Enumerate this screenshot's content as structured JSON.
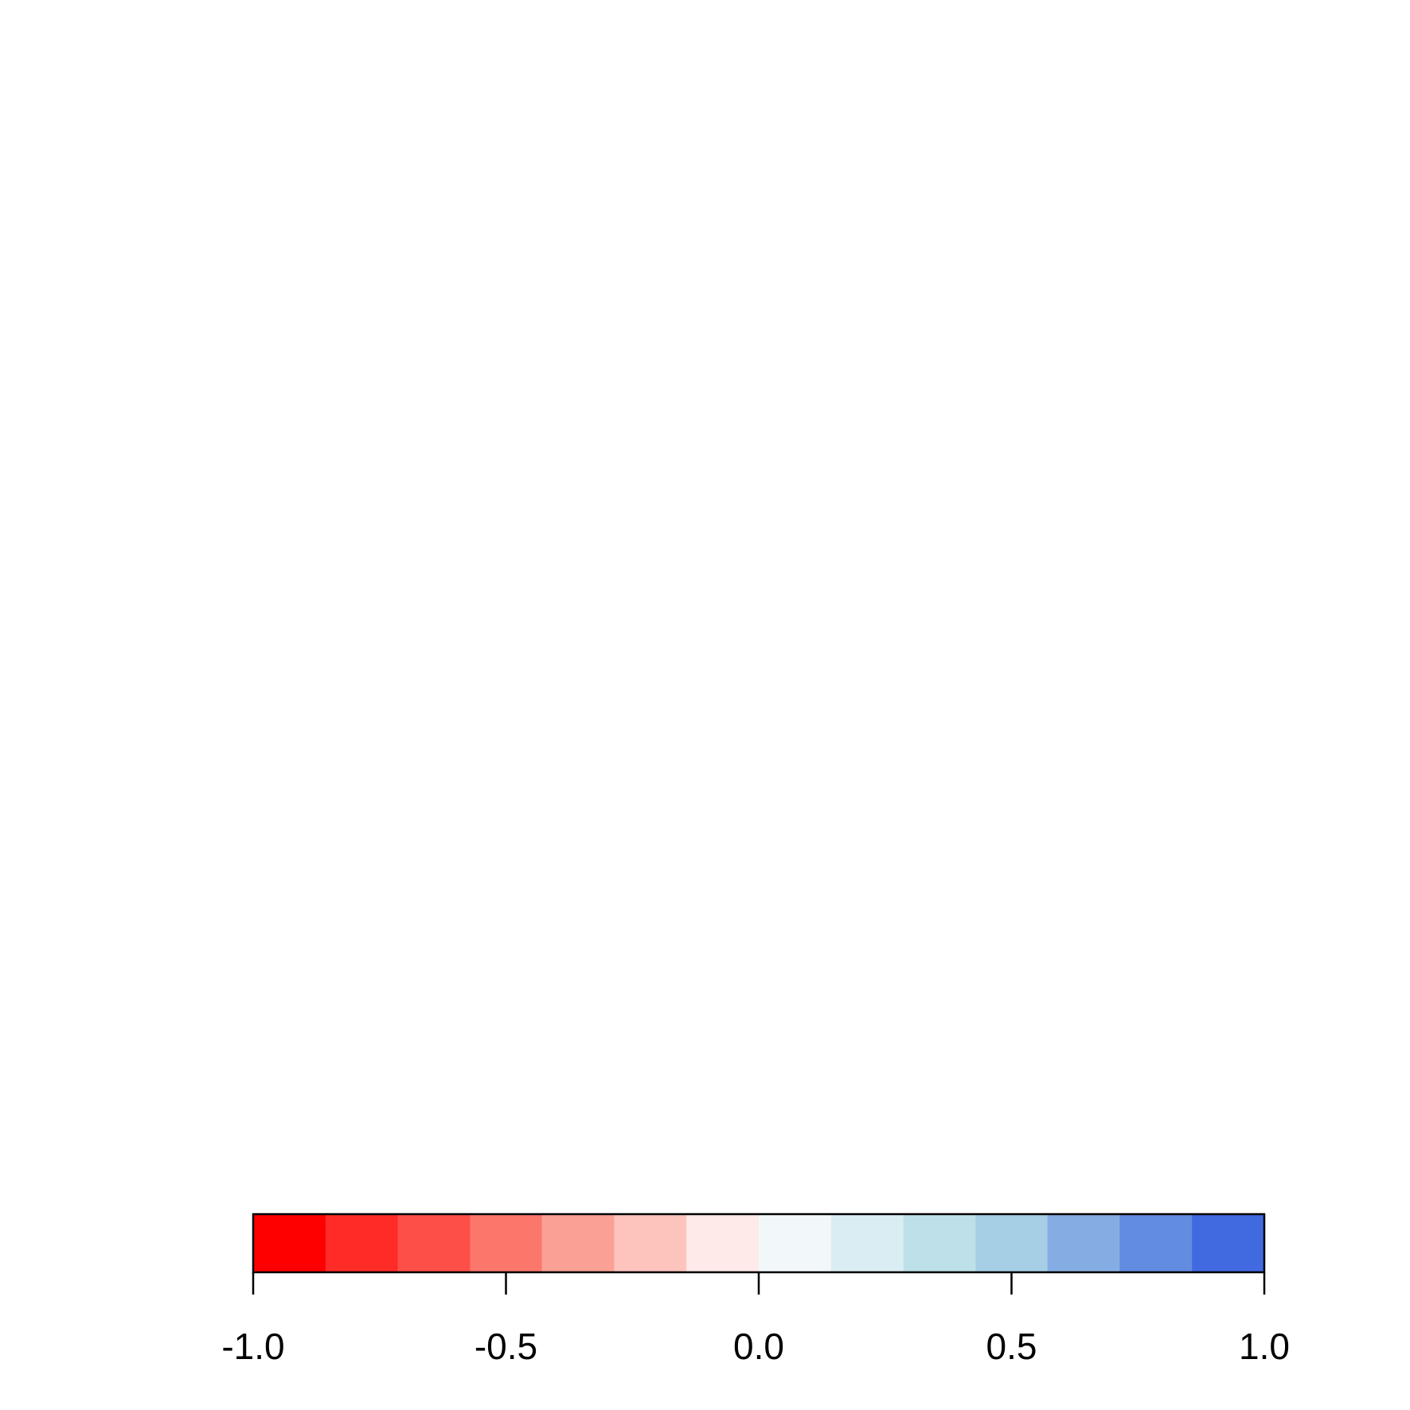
{
  "chart_data": {
    "type": "heatmap",
    "title": "",
    "xlabel": "",
    "ylabel": "",
    "orientation": "horizontal",
    "legend_position": "bottom",
    "range": [
      -1.0,
      1.0
    ],
    "bins": [
      {
        "from": -1.0,
        "to": -0.857,
        "color": "#FF0000"
      },
      {
        "from": -0.857,
        "to": -0.714,
        "color": "#FE2B27"
      },
      {
        "from": -0.714,
        "to": -0.571,
        "color": "#FD4F47"
      },
      {
        "from": -0.571,
        "to": -0.429,
        "color": "#FB776B"
      },
      {
        "from": -0.429,
        "to": -0.286,
        "color": "#FBA095"
      },
      {
        "from": -0.286,
        "to": -0.143,
        "color": "#FDC4BE"
      },
      {
        "from": -0.143,
        "to": 0.0,
        "color": "#FEEAE8"
      },
      {
        "from": 0.0,
        "to": 0.143,
        "color": "#F2F8FA"
      },
      {
        "from": 0.143,
        "to": 0.286,
        "color": "#DAEDF3"
      },
      {
        "from": 0.286,
        "to": 0.429,
        "color": "#BEE0E9"
      },
      {
        "from": 0.429,
        "to": 0.571,
        "color": "#A6CFE6"
      },
      {
        "from": 0.571,
        "to": 0.714,
        "color": "#85ADE3"
      },
      {
        "from": 0.714,
        "to": 0.857,
        "color": "#628CE0"
      },
      {
        "from": 0.857,
        "to": 1.0,
        "color": "#4169E0"
      }
    ],
    "ticks": [
      {
        "value": -1.0,
        "label": "-1.0"
      },
      {
        "value": -0.5,
        "label": "-0.5"
      },
      {
        "value": 0.0,
        "label": "0.0"
      },
      {
        "value": 0.5,
        "label": "0.5"
      },
      {
        "value": 1.0,
        "label": "1.0"
      }
    ]
  }
}
